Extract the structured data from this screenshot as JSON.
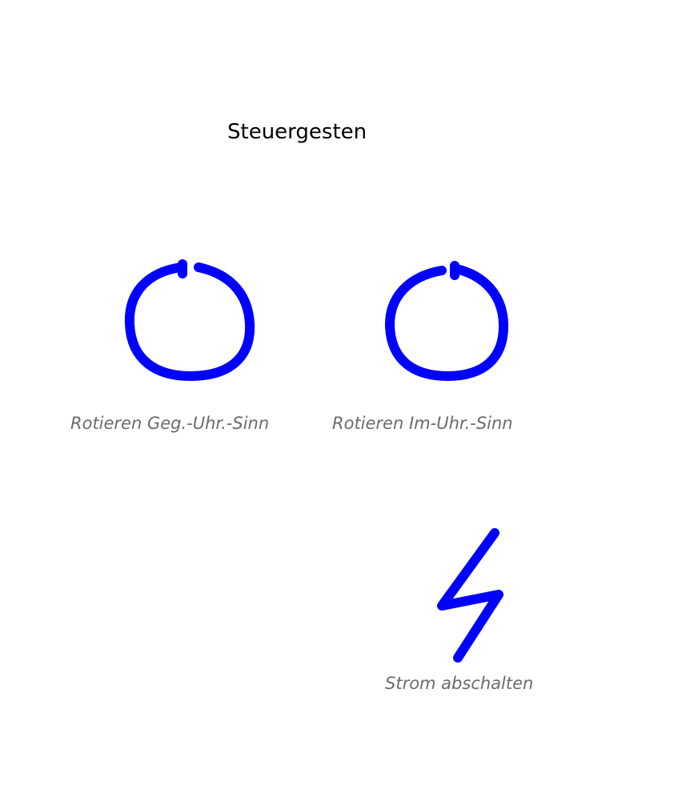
{
  "title": "Steuergesten",
  "stroke_color": "#0000ff",
  "caption_color": "#6b6b6b",
  "gestures": [
    {
      "icon": "counterclockwise-circle-icon",
      "label": "Rotieren Geg.-Uhr.-Sinn"
    },
    {
      "icon": "clockwise-circle-icon",
      "label": "Rotieren Im-Uhr.-Sinn"
    },
    {
      "icon": "lightning-bolt-icon",
      "label": "Strom abschalten"
    }
  ]
}
